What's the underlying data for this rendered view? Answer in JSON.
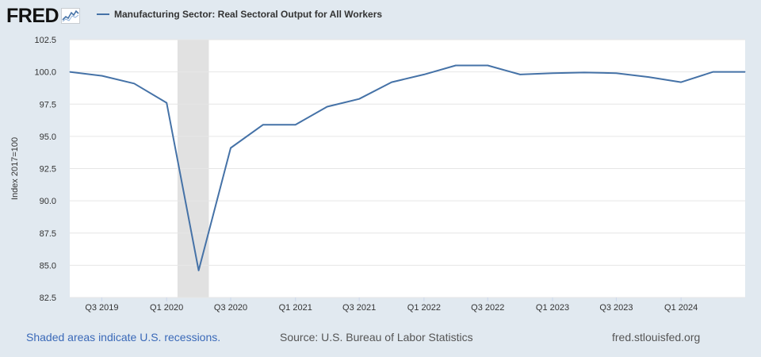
{
  "logo": {
    "text": "FRED",
    "icon": "fred-chart-icon"
  },
  "legend": {
    "label": "Manufacturing Sector: Real Sectoral Output for All Workers"
  },
  "footer": {
    "note": "Shaded areas indicate U.S. recessions.",
    "source": "Source: U.S. Bureau of Labor Statistics",
    "site": "fred.stlouisfed.org"
  },
  "colors": {
    "line": "#4572a7",
    "recession": "#e1e1e1",
    "background": "#e1e9f0",
    "plot": "#ffffff",
    "note": "#3a69b8"
  },
  "chart_data": {
    "type": "line",
    "ylabel": "Index 2017=100",
    "ylim": [
      82.5,
      102.5
    ],
    "yticks": [
      "82.5",
      "85.0",
      "87.5",
      "90.0",
      "92.5",
      "95.0",
      "97.5",
      "100.0",
      "102.5"
    ],
    "xrange": [
      "2019-04-01",
      "2024-07-01"
    ],
    "xticks": [
      {
        "label": "Q3 2019",
        "date": "2019-07-01"
      },
      {
        "label": "Q1 2020",
        "date": "2020-01-01"
      },
      {
        "label": "Q3 2020",
        "date": "2020-07-01"
      },
      {
        "label": "Q1 2021",
        "date": "2021-01-01"
      },
      {
        "label": "Q3 2021",
        "date": "2021-07-01"
      },
      {
        "label": "Q1 2022",
        "date": "2022-01-01"
      },
      {
        "label": "Q3 2022",
        "date": "2022-07-01"
      },
      {
        "label": "Q1 2023",
        "date": "2023-01-01"
      },
      {
        "label": "Q3 2023",
        "date": "2023-07-01"
      },
      {
        "label": "Q1 2024",
        "date": "2024-01-01"
      }
    ],
    "recessions": [
      {
        "start": "2020-02-01",
        "end": "2020-04-30"
      }
    ],
    "grid": true,
    "series": [
      {
        "name": "Manufacturing Sector: Real Sectoral Output for All Workers",
        "x": [
          "2019-04-01",
          "2019-07-01",
          "2019-10-01",
          "2020-01-01",
          "2020-04-01",
          "2020-07-01",
          "2020-10-01",
          "2021-01-01",
          "2021-04-01",
          "2021-07-01",
          "2021-10-01",
          "2022-01-01",
          "2022-04-01",
          "2022-07-01",
          "2022-10-01",
          "2023-01-01",
          "2023-04-01",
          "2023-07-01",
          "2023-10-01",
          "2024-01-01",
          "2024-04-01",
          "2024-07-01"
        ],
        "values": [
          100.0,
          99.7,
          99.1,
          97.6,
          84.6,
          94.1,
          95.9,
          95.9,
          97.3,
          97.9,
          99.2,
          99.8,
          100.5,
          100.5,
          99.8,
          99.9,
          99.95,
          99.9,
          99.6,
          99.2,
          100.0,
          100.0
        ]
      }
    ]
  }
}
